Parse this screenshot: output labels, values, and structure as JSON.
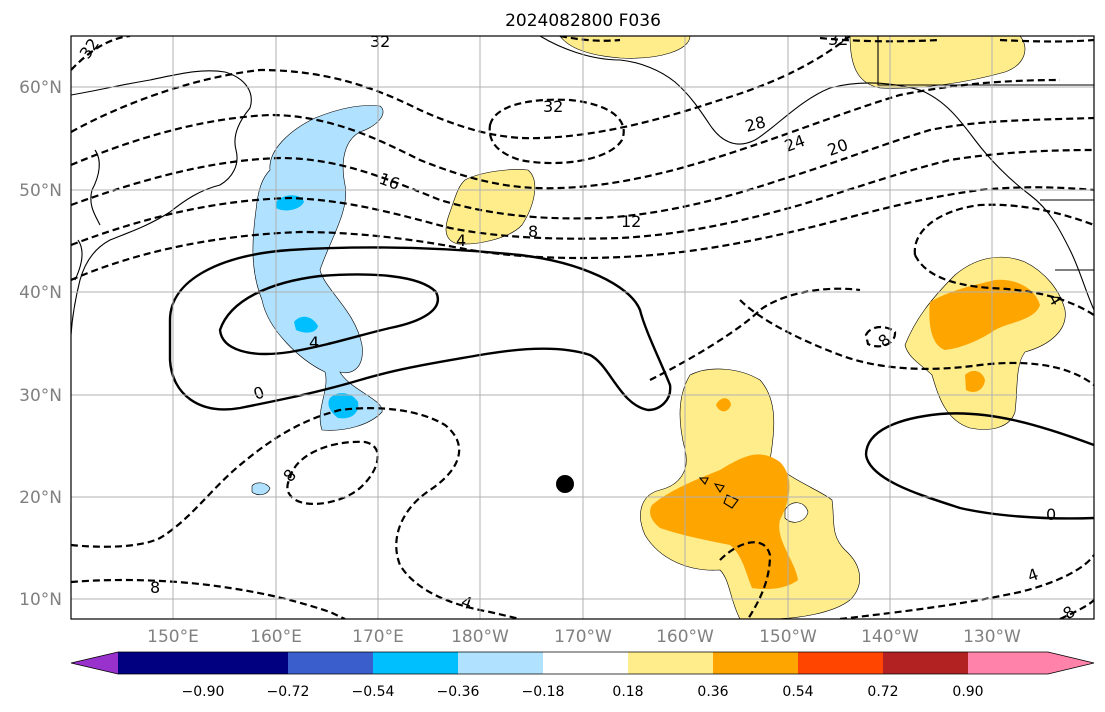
{
  "title": "2024082800 F036",
  "lat_labels": [
    "60°N",
    "50°N",
    "40°N",
    "30°N",
    "20°N",
    "10°N"
  ],
  "lon_labels": [
    "150°E",
    "160°E",
    "170°E",
    "180°W",
    "170°W",
    "160°W",
    "150°W",
    "140°W",
    "130°W"
  ],
  "colorbar": {
    "tick_labels": [
      "−0.90",
      "−0.72",
      "−0.54",
      "−0.36",
      "−0.18",
      "0.18",
      "0.36",
      "0.54",
      "0.72",
      "0.90"
    ],
    "colors": [
      "#9932cc",
      "#000080",
      "#3a5fcd",
      "#00bfff",
      "#b0e2ff",
      "#ffffff",
      "#ffec8b",
      "#ffa500",
      "#ff4500",
      "#b22222",
      "#ff82ab"
    ]
  },
  "contour_labels": [
    "32",
    "32",
    "32",
    "32",
    "28",
    "24",
    "20",
    "16",
    "12",
    "8",
    "4",
    "4",
    "0",
    "0",
    "8",
    "8",
    "8",
    "4",
    "4",
    "8",
    "4"
  ],
  "marker": "black-dot",
  "shading_colors": {
    "light_blue": "#b0e2ff",
    "blue": "#00bfff",
    "yellow": "#ffec8b",
    "orange": "#ffa500"
  }
}
